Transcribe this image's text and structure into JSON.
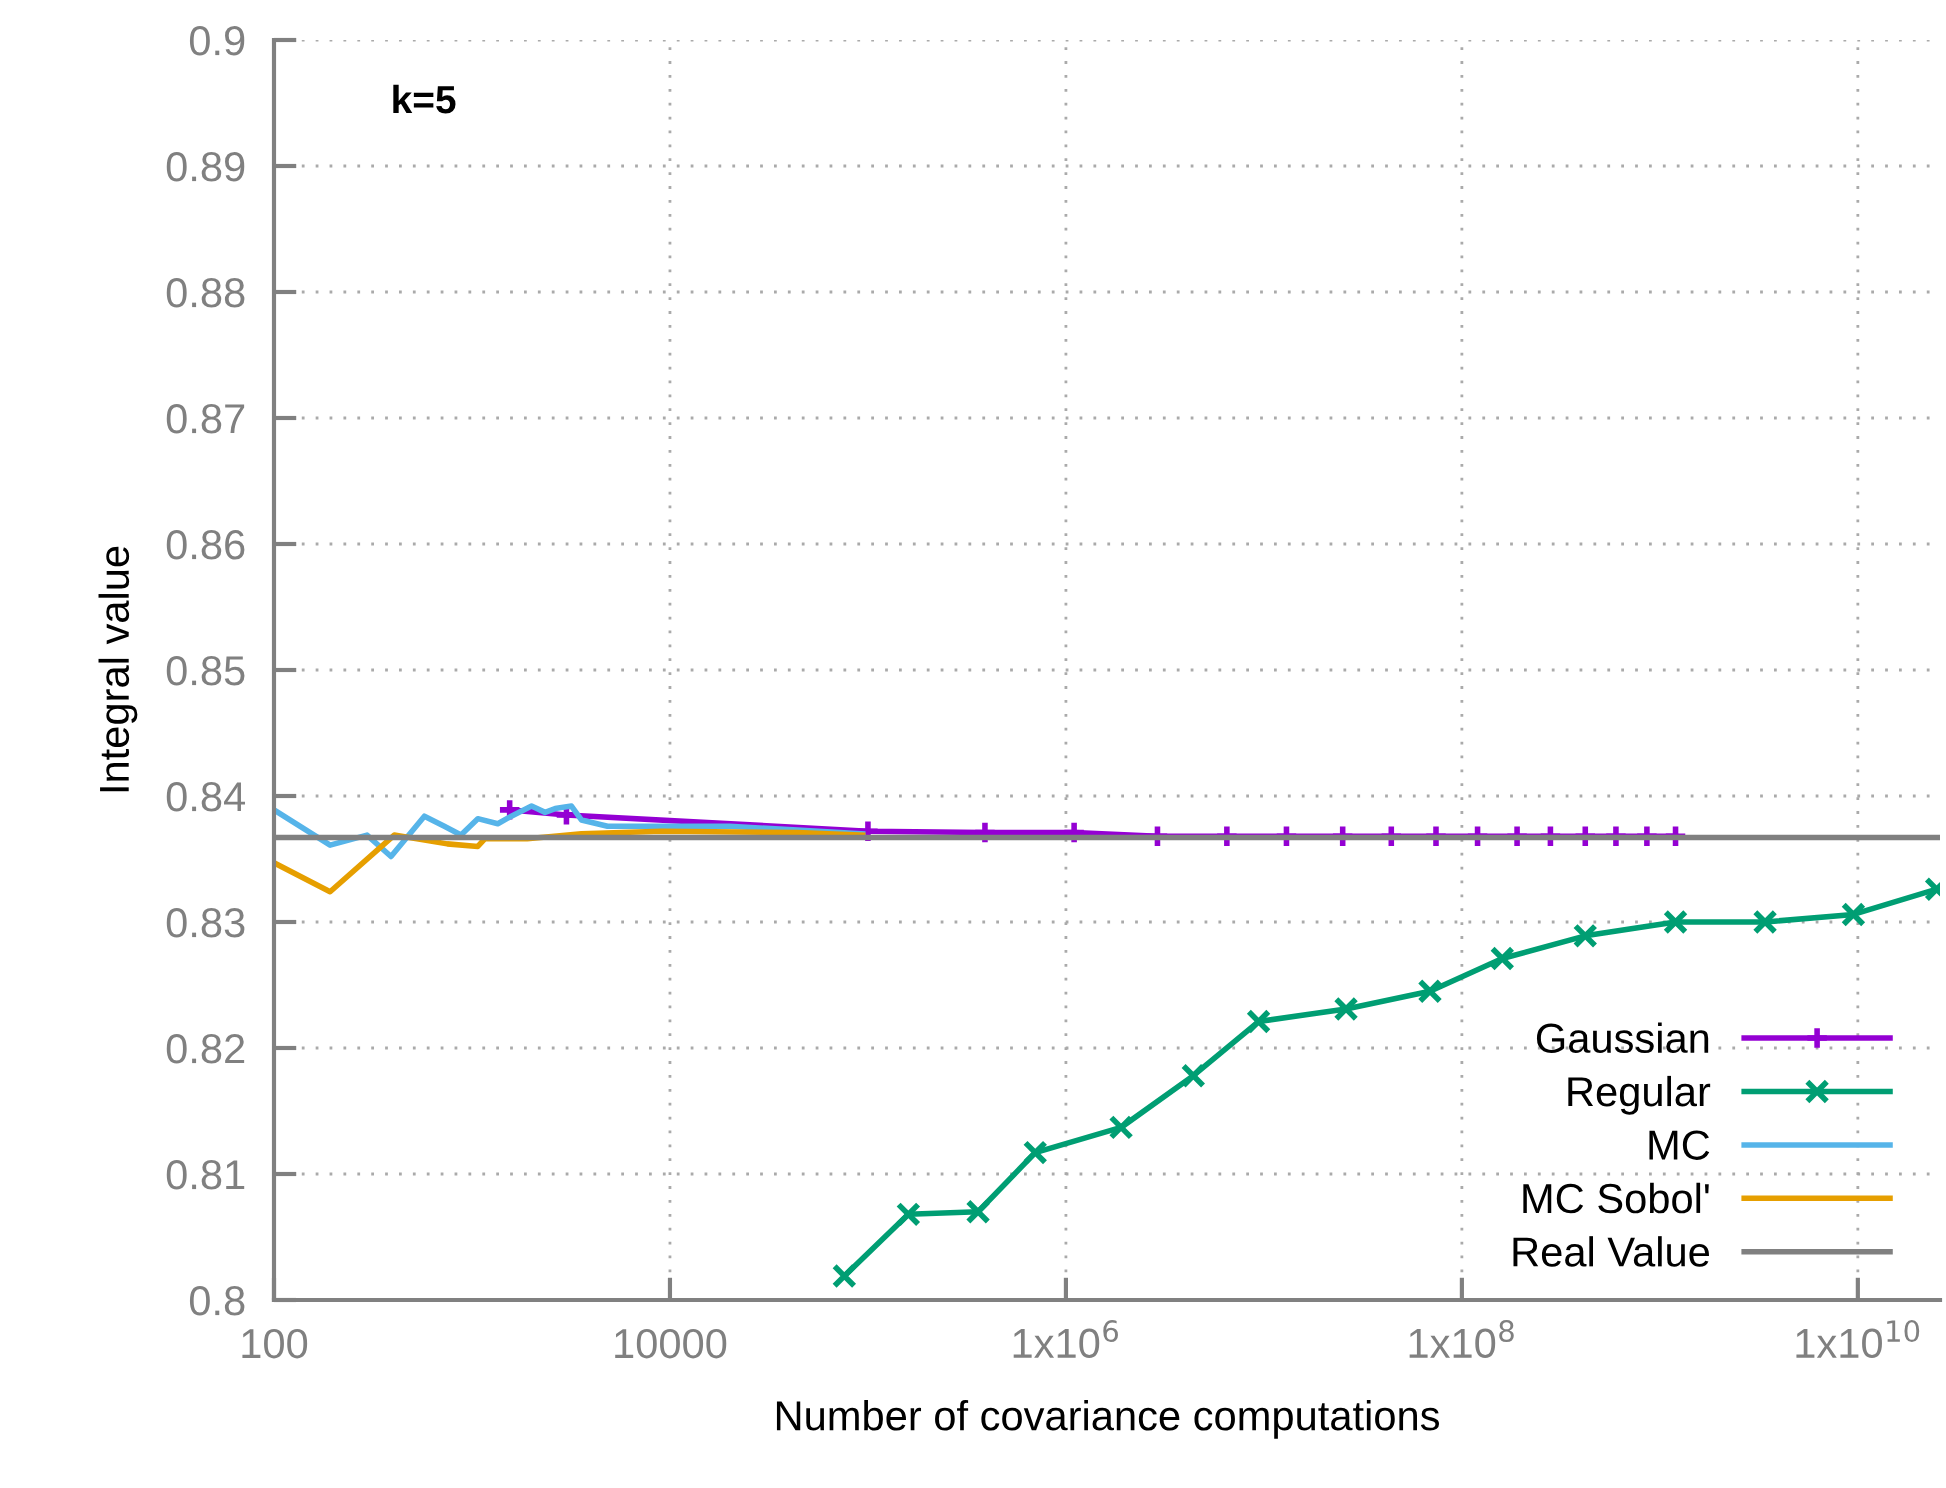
{
  "chart_data": {
    "type": "line",
    "xlabel": "Number of covariance computations",
    "ylabel": "Integral value",
    "annotations": [
      "k=5"
    ],
    "log": "x",
    "grid": true,
    "legend": "bottom right",
    "xlim": [
      100,
      26000000000
    ],
    "ylim": [
      0.8,
      0.9
    ],
    "xticks": [
      100,
      10000,
      {
        "value": 1000000,
        "label": "1x10$^{6}$"
      },
      {
        "value": 100000000,
        "label": "1x10$^{8}$"
      },
      {
        "value": 10000000000,
        "label": "1x10$^{10}$"
      }
    ],
    "yticks": [
      0.8,
      0.81,
      0.82,
      0.83,
      0.84,
      0.85,
      0.86,
      0.87,
      0.88,
      0.89,
      0.9
    ],
    "series": [
      {
        "name": "Gaussian",
        "color": "#9400d3",
        "marker": "plus",
        "x": [
          1550,
          3000,
          100000,
          390000,
          1100000,
          2900000,
          6500000,
          13000000,
          25000000,
          44000000,
          74000000,
          120000000,
          190000000,
          280000000,
          420000000,
          600000000,
          860000000,
          1200000000
        ],
        "values": [
          0.8389,
          0.8385,
          0.8372,
          0.8371,
          0.8371,
          0.8368,
          0.8368,
          0.8368,
          0.8368,
          0.8368,
          0.8368,
          0.8368,
          0.8368,
          0.8368,
          0.8368,
          0.8368,
          0.8368,
          0.8368
        ]
      },
      {
        "name": "Regular",
        "color": "#009e73",
        "marker": "cross",
        "x": [
          76000,
          160000,
          360000,
          700000,
          1900000,
          4400000,
          9400000,
          26000000,
          69000000,
          160000000,
          420000000,
          1200000000,
          3400000000,
          9500000000,
          25000000000
        ],
        "values": [
          0.8019,
          0.8068,
          0.807,
          0.8117,
          0.8137,
          0.8178,
          0.8221,
          0.8231,
          0.8245,
          0.8271,
          0.8289,
          0.83,
          0.83,
          0.8306,
          0.8326
        ]
      },
      {
        "name": "MC",
        "color": "#56b4e9",
        "x": [
          100,
          192,
          295,
          390,
          575,
          725,
          880,
          1070,
          1350,
          1580,
          2000,
          2340,
          2630,
          3180,
          3570,
          4840,
          9100,
          20000,
          44000,
          94000
        ],
        "values": [
          0.8389,
          0.8361,
          0.8369,
          0.8352,
          0.8384,
          0.8376,
          0.8369,
          0.8382,
          0.8378,
          0.8384,
          0.8392,
          0.8387,
          0.839,
          0.8392,
          0.8381,
          0.8376,
          0.8376,
          0.8376,
          0.8373,
          0.837
        ]
      },
      {
        "name": "MC Sobol'",
        "color": "#e69f00",
        "x": [
          100,
          192,
          405,
          750,
          1070,
          1160,
          1900,
          3570,
          9100,
          44000,
          94000
        ],
        "values": [
          0.8347,
          0.8324,
          0.8369,
          0.8362,
          0.836,
          0.8366,
          0.8366,
          0.837,
          0.8372,
          0.8371,
          0.8369
        ]
      },
      {
        "name": "Real Value",
        "color": "#808080",
        "x": [
          100,
          26000000000
        ],
        "values": [
          0.8367,
          0.8367
        ]
      }
    ]
  }
}
